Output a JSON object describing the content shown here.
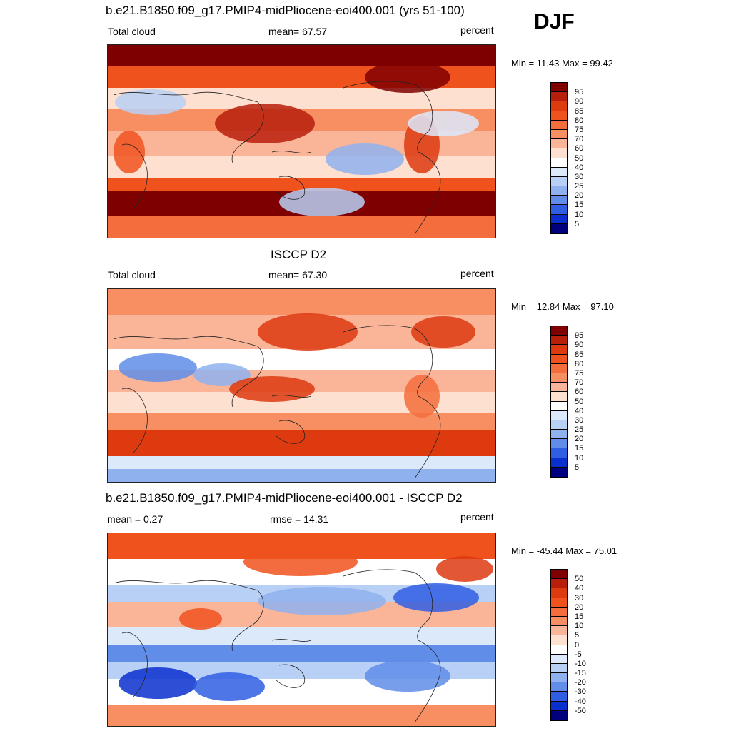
{
  "season": "DJF",
  "coast_color": "#222222",
  "panels": [
    {
      "title": "b.e21.B1850.f09_g17.PMIP4-midPliocene-eoi400.001 (yrs 51-100)",
      "left_label": "Total cloud",
      "mid_label": "mean=  67.57",
      "right_label": "percent",
      "minmax": "Min =  11.43 Max =  99.42",
      "map_kind": "model",
      "colorbar": {
        "labels": [
          "95",
          "90",
          "85",
          "80",
          "75",
          "70",
          "60",
          "50",
          "40",
          "30",
          "25",
          "20",
          "15",
          "10",
          "5"
        ],
        "colors": [
          "#7f0000",
          "#b81f0a",
          "#dd3a10",
          "#f0521e",
          "#f46d3c",
          "#f78f63",
          "#fab598",
          "#fde0cf",
          "#ffffff",
          "#dce9fb",
          "#b8d0f5",
          "#8fb2ee",
          "#5f8de8",
          "#2f5ee3",
          "#0a2fcf",
          "#00007f"
        ]
      }
    },
    {
      "title": "ISCCP D2",
      "left_label": "Total cloud",
      "mid_label": "mean=  67.30",
      "right_label": "percent",
      "minmax": "Min =  12.84 Max =  97.10",
      "map_kind": "obs",
      "colorbar": {
        "labels": [
          "95",
          "90",
          "85",
          "80",
          "75",
          "70",
          "60",
          "50",
          "40",
          "30",
          "25",
          "20",
          "15",
          "10",
          "5"
        ],
        "colors": [
          "#7f0000",
          "#b81f0a",
          "#dd3a10",
          "#f0521e",
          "#f46d3c",
          "#f78f63",
          "#fab598",
          "#fde0cf",
          "#ffffff",
          "#dce9fb",
          "#b8d0f5",
          "#8fb2ee",
          "#5f8de8",
          "#2f5ee3",
          "#0a2fcf",
          "#00007f"
        ]
      }
    },
    {
      "title": "b.e21.B1850.f09_g17.PMIP4-midPliocene-eoi400.001 - ISCCP D2",
      "left_label": "mean =   0.27",
      "mid_label": "rmse =  14.31",
      "right_label": "percent",
      "minmax": "Min = -45.44 Max =  75.01",
      "map_kind": "diff",
      "colorbar": {
        "labels": [
          "50",
          "40",
          "30",
          "20",
          "15",
          "10",
          "5",
          "0",
          "-5",
          "-10",
          "-15",
          "-20",
          "-30",
          "-40",
          "-50"
        ],
        "colors": [
          "#7f0000",
          "#b81f0a",
          "#dd3a10",
          "#f0521e",
          "#f46d3c",
          "#f78f63",
          "#fab598",
          "#fde0cf",
          "#ffffff",
          "#dce9fb",
          "#b8d0f5",
          "#8fb2ee",
          "#5f8de8",
          "#2f5ee3",
          "#0a2fcf",
          "#00007f"
        ]
      }
    }
  ]
}
